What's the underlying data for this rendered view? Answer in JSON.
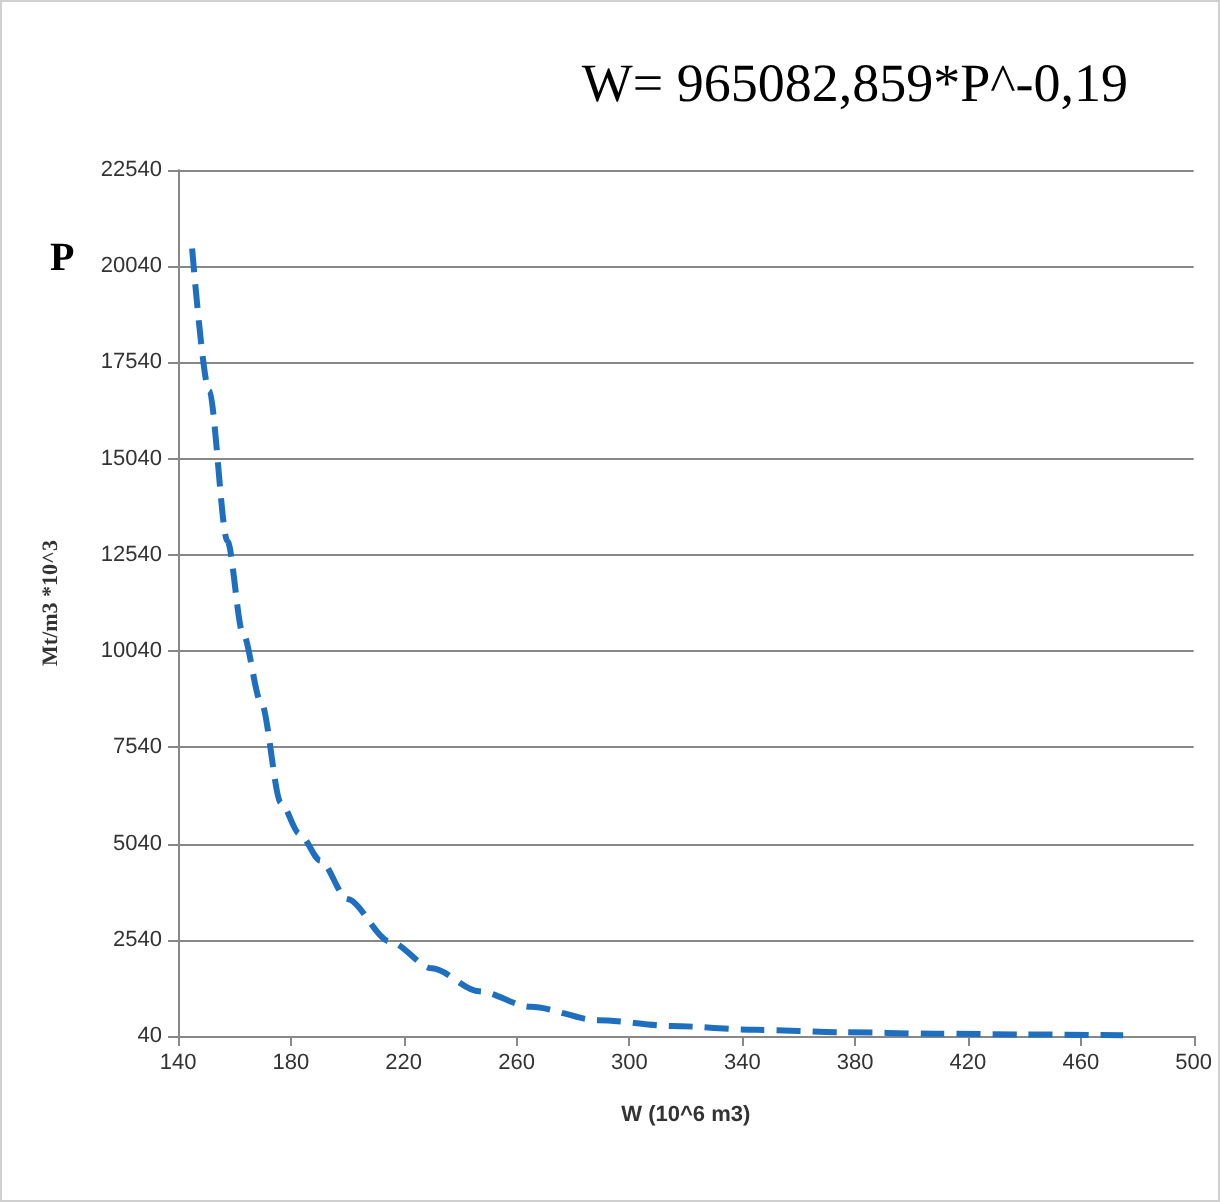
{
  "chart_data": {
    "type": "line",
    "title": "W= 965082,859*P^-0,19",
    "xlabel": "W (10^6 m3)",
    "ylabel": "Mt/m3 *10^3",
    "annotations": [
      "P"
    ],
    "x": [
      145,
      151,
      157.5,
      163,
      169.5,
      176.5,
      183,
      190.5,
      200,
      215,
      230,
      246.7,
      265,
      288.8,
      315,
      345,
      375,
      408,
      440,
      475
    ],
    "series": [
      {
        "color": "#1f6fc0",
        "values": [
          20500,
          16800,
          12900,
          10500,
          8700,
          6100,
          5300,
          4600,
          3600,
          2500,
          1800,
          1200,
          800,
          450,
          300,
          200,
          140,
          100,
          80,
          60
        ]
      }
    ],
    "xlim": [
      140,
      500
    ],
    "xticks": [
      140,
      180,
      220,
      260,
      300,
      340,
      380,
      420,
      460,
      500
    ],
    "ylim": [
      40,
      22540
    ],
    "yticks": [
      40,
      2540,
      5040,
      7540,
      10040,
      12540,
      15040,
      17540,
      20040,
      22540
    ],
    "grid": "y",
    "marker": "none",
    "line_style": "dashed"
  }
}
